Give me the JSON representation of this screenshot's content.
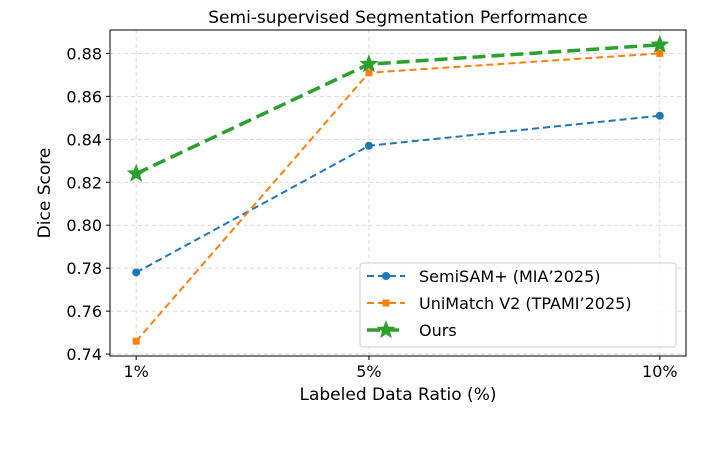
{
  "chart_data": {
    "type": "line",
    "title": "Semi-supervised Segmentation Performance",
    "xlabel": "Labeled Data Ratio (%)",
    "ylabel": "Dice Score",
    "x": [
      1,
      5,
      10
    ],
    "x_tick_labels": [
      "1%",
      "5%",
      "10%"
    ],
    "y_ticks": [
      0.74,
      0.76,
      0.78,
      0.8,
      0.82,
      0.84,
      0.86,
      0.88
    ],
    "y_tick_labels": [
      "0.74",
      "0.76",
      "0.78",
      "0.80",
      "0.82",
      "0.84",
      "0.86",
      "0.88"
    ],
    "xlim": [
      0.55,
      10.45
    ],
    "ylim": [
      0.7391,
      0.8909
    ],
    "grid": true,
    "legend_position": "lower-right",
    "series": [
      {
        "name": "SemiSAM+ (MIA’2025)",
        "values": [
          0.778,
          0.837,
          0.851
        ],
        "color": "#1f77b4",
        "marker": "circle",
        "linestyle": "dashed"
      },
      {
        "name": "UniMatch V2 (TPAMI’2025)",
        "values": [
          0.746,
          0.871,
          0.88
        ],
        "color": "#ff7f0e",
        "marker": "square",
        "linestyle": "dashed"
      },
      {
        "name": "Ours",
        "values": [
          0.824,
          0.875,
          0.884
        ],
        "color": "#2ca02c",
        "marker": "star",
        "linestyle": "dashed-bold"
      }
    ]
  }
}
